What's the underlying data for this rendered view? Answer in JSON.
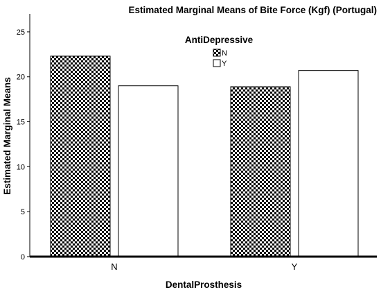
{
  "chart_data": {
    "type": "bar",
    "title": "Estimated Marginal Means of Bite Force (Kgf) (Portugal)",
    "xlabel": "DentalProsthesis",
    "ylabel": "Estimated Marginal Means",
    "categories": [
      "N",
      "Y"
    ],
    "yticks": [
      "0",
      "5",
      "10",
      "15",
      "20",
      "25"
    ],
    "ylim": [
      0,
      27
    ],
    "grid": false,
    "legend": {
      "title": "AntiDepressive",
      "placement": "top-center",
      "entries": [
        "N",
        "Y"
      ]
    },
    "series": [
      {
        "name": "N",
        "values": [
          22.3,
          18.9
        ],
        "pattern": "checker",
        "color": "#000000"
      },
      {
        "name": "Y",
        "values": [
          19.0,
          20.7
        ],
        "pattern": "none",
        "color": "#ffffff"
      }
    ]
  }
}
